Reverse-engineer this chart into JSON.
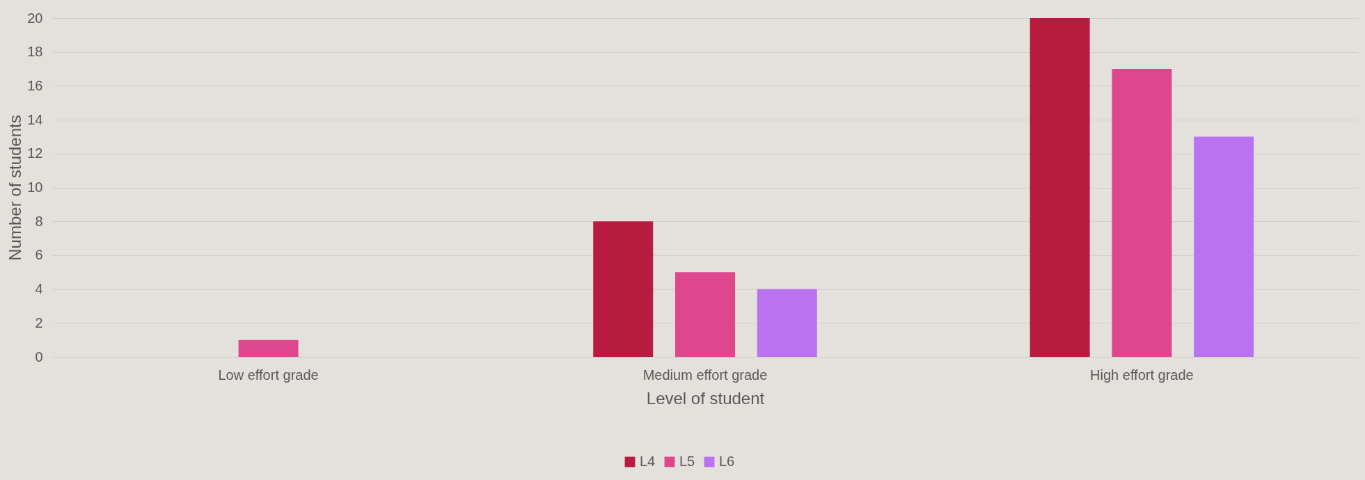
{
  "chart_data": {
    "type": "bar",
    "xlabel": "Level of student",
    "ylabel": "Number of students",
    "categories": [
      "Low effort grade",
      "Medium effort grade",
      "High effort grade"
    ],
    "series": [
      {
        "name": "L4",
        "color": "#b71c40",
        "values": [
          0,
          8,
          20
        ]
      },
      {
        "name": "L5",
        "color": "#de478d",
        "values": [
          1,
          5,
          17
        ]
      },
      {
        "name": "L6",
        "color": "#bb72f0",
        "values": [
          0,
          4,
          13
        ]
      }
    ],
    "ylim": [
      0,
      20
    ],
    "yticks": [
      0,
      2,
      4,
      6,
      8,
      10,
      12,
      14,
      16,
      18,
      20
    ],
    "grid": "y",
    "legend": "bottom"
  }
}
